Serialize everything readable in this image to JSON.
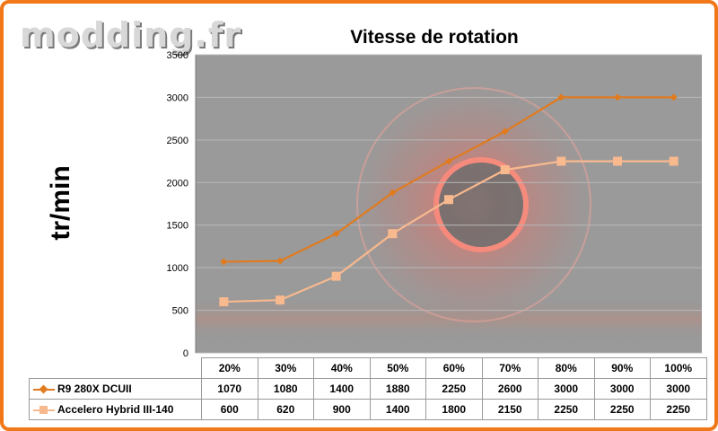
{
  "watermark": "modding.fr",
  "chart_data": {
    "type": "line",
    "title": "Vitesse de rotation",
    "ylabel": "tr/min",
    "xlabel": "",
    "categories": [
      "20%",
      "30%",
      "40%",
      "50%",
      "60%",
      "70%",
      "80%",
      "90%",
      "100%"
    ],
    "ylim": [
      0,
      3500
    ],
    "yticks": [
      0,
      500,
      1000,
      1500,
      2000,
      2500,
      3000,
      3500
    ],
    "grid": true,
    "legend": "data-table",
    "series": [
      {
        "name": "R9 280X DCUII",
        "values": [
          1070,
          1080,
          1400,
          1880,
          2250,
          2600,
          3000,
          3000,
          3000
        ],
        "color": "#e07b1f",
        "marker": "diamond"
      },
      {
        "name": "Accelero Hybrid III-140",
        "values": [
          600,
          620,
          900,
          1400,
          1800,
          2150,
          2250,
          2250,
          2250
        ],
        "color": "#f8b98e",
        "marker": "square"
      }
    ]
  }
}
